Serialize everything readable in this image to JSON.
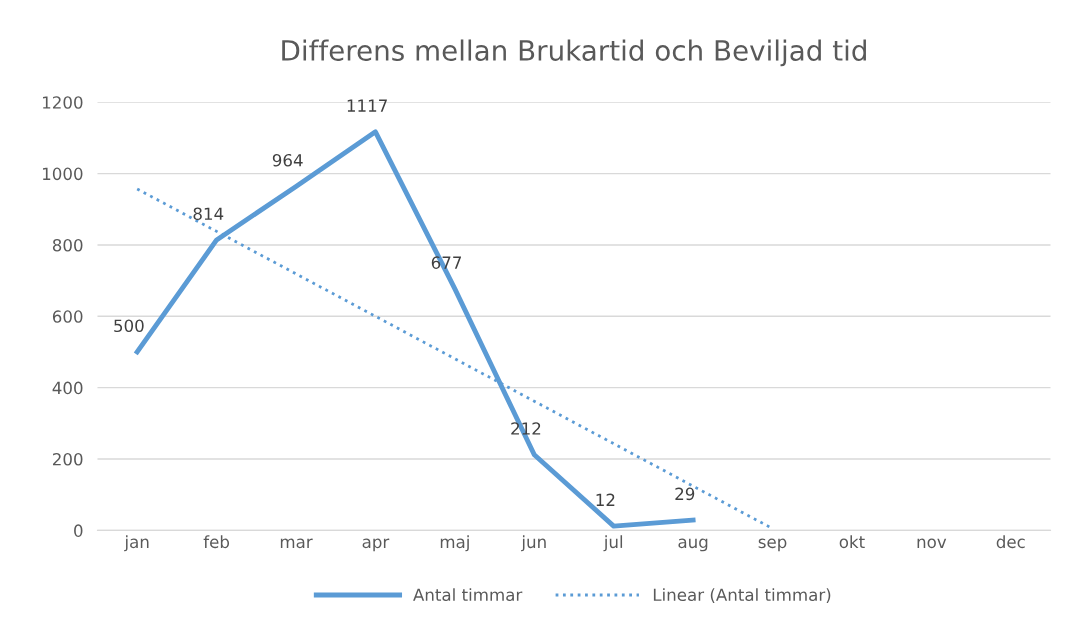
{
  "chart_data": {
    "type": "line",
    "title": "Differens mellan Brukartid och Beviljad tid",
    "categories": [
      "jan",
      "feb",
      "mar",
      "apr",
      "maj",
      "jun",
      "jul",
      "aug",
      "sep",
      "okt",
      "nov",
      "dec"
    ],
    "series": [
      {
        "name": "Antal timmar",
        "color": "#5b9bd5",
        "values": [
          500,
          814,
          964,
          1117,
          677,
          212,
          12,
          29,
          null,
          null,
          null,
          null
        ],
        "data_labels": true,
        "line_style": "solid"
      },
      {
        "name": "Linear (Antal timmar)",
        "color": "#5b9bd5",
        "values": [
          957,
          838,
          719,
          600,
          481,
          362,
          243,
          124,
          5,
          null,
          null,
          null
        ],
        "line_style": "dotted"
      }
    ],
    "ylim": [
      0,
      1200
    ],
    "yticks": [
      0,
      200,
      400,
      600,
      800,
      1000,
      1200
    ],
    "grid": "y",
    "legend": "bottom",
    "marker": "none"
  }
}
